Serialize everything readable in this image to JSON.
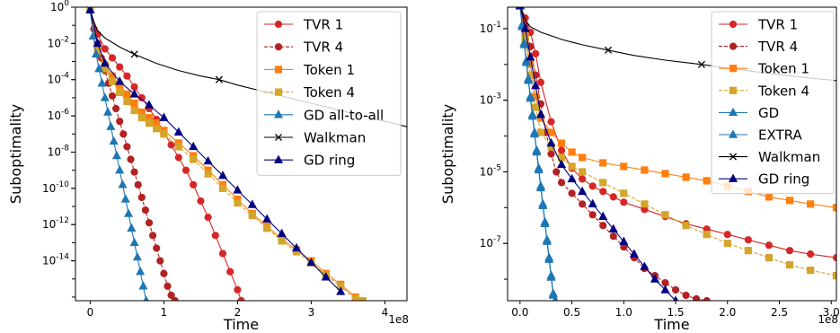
{
  "chart_data": [
    {
      "type": "line",
      "ylabel": "Suboptimality",
      "xlabel": "Time",
      "x_scale_label": "1e8",
      "yscale": "log",
      "xlim": [
        -0.2,
        4.3
      ],
      "ylim_log10": [
        -16.2,
        0
      ],
      "xticks": [
        0,
        1,
        2,
        3,
        4
      ],
      "xtick_labels": [
        "0",
        "1",
        "2",
        "3",
        "4"
      ],
      "yticks_log10": [
        0,
        -2,
        -4,
        -6,
        -8,
        -10,
        -12,
        -14
      ],
      "ytick_labels": [
        {
          "base": "10",
          "exp": "0"
        },
        {
          "base": "10",
          "exp": "-2"
        },
        {
          "base": "10",
          "exp": "-4"
        },
        {
          "base": "10",
          "exp": "-6"
        },
        {
          "base": "10",
          "exp": "-8"
        },
        {
          "base": "10",
          "exp": "-10"
        },
        {
          "base": "10",
          "exp": "-12"
        },
        {
          "base": "10",
          "exp": "-14"
        }
      ],
      "legend_position": "top-right",
      "series": [
        {
          "name": "TVR 1",
          "color": "#d62728",
          "marker": "circle",
          "dash": "solid",
          "x": [
            0.0,
            0.1,
            0.2,
            0.3,
            0.4,
            0.5,
            0.6,
            0.7,
            0.8,
            0.9,
            1.0,
            1.1,
            1.2,
            1.3,
            1.4,
            1.5,
            1.6,
            1.7,
            1.8,
            1.9,
            2.0,
            2.05
          ],
          "y_log10": [
            -0.15,
            -1.5,
            -2.3,
            -2.8,
            -3.3,
            -3.8,
            -4.4,
            -5.0,
            -5.6,
            -6.2,
            -6.9,
            -7.6,
            -8.3,
            -9.0,
            -9.8,
            -10.7,
            -11.6,
            -12.6,
            -13.6,
            -14.6,
            -15.6,
            -16.2
          ]
        },
        {
          "name": "TVR 4",
          "color": "#b22222",
          "marker": "circle",
          "dash": "dashed",
          "x": [
            0.0,
            0.05,
            0.1,
            0.15,
            0.2,
            0.25,
            0.3,
            0.35,
            0.4,
            0.45,
            0.5,
            0.55,
            0.6,
            0.65,
            0.7,
            0.75,
            0.8,
            0.85,
            0.9,
            0.95,
            1.0,
            1.05,
            1.1,
            1.15
          ],
          "y_log10": [
            -0.15,
            -1.2,
            -2.0,
            -2.8,
            -3.5,
            -4.2,
            -4.9,
            -5.6,
            -6.3,
            -7.0,
            -7.7,
            -8.4,
            -9.1,
            -9.8,
            -10.5,
            -11.2,
            -11.9,
            -12.6,
            -13.3,
            -14.0,
            -14.7,
            -15.4,
            -15.9,
            -16.2
          ]
        },
        {
          "name": "Token 1",
          "color": "#ff7f0e",
          "marker": "square",
          "dash": "solid",
          "x": [
            0.0,
            0.1,
            0.2,
            0.3,
            0.4,
            0.5,
            0.6,
            0.7,
            0.8,
            0.9,
            1.0,
            1.2,
            1.4,
            1.6,
            1.8,
            2.0,
            2.2,
            2.4,
            2.6,
            2.8,
            3.0,
            3.2,
            3.4,
            3.6
          ],
          "y_log10": [
            -0.15,
            -2.2,
            -3.2,
            -3.8,
            -4.3,
            -4.8,
            -5.3,
            -5.8,
            -6.1,
            -6.4,
            -6.8,
            -7.5,
            -8.2,
            -9.0,
            -9.8,
            -10.6,
            -11.4,
            -12.1,
            -12.8,
            -13.4,
            -14.0,
            -14.7,
            -15.3,
            -16.0
          ]
        },
        {
          "name": "Token 4",
          "color": "#d4a52a",
          "marker": "square",
          "dash": "dashed",
          "x": [
            0.0,
            0.1,
            0.2,
            0.3,
            0.4,
            0.5,
            0.6,
            0.7,
            0.8,
            0.9,
            1.0,
            1.2,
            1.4,
            1.6,
            1.8,
            2.0,
            2.2,
            2.4,
            2.6,
            2.8,
            3.0,
            3.2,
            3.4,
            3.6,
            3.7
          ],
          "y_log10": [
            -0.15,
            -2.4,
            -3.4,
            -4.1,
            -4.7,
            -5.2,
            -5.7,
            -6.1,
            -6.4,
            -6.7,
            -7.0,
            -7.7,
            -8.4,
            -9.2,
            -10.0,
            -10.8,
            -11.5,
            -12.2,
            -12.9,
            -13.5,
            -14.1,
            -14.8,
            -15.4,
            -16.1,
            -16.2
          ]
        },
        {
          "name": "GD all-to-all",
          "color": "#1f77b4",
          "marker": "triangle",
          "dash": "solid",
          "x": [
            0.0,
            0.04,
            0.08,
            0.12,
            0.16,
            0.2,
            0.24,
            0.28,
            0.32,
            0.36,
            0.4,
            0.44,
            0.48,
            0.52,
            0.56,
            0.6,
            0.64,
            0.68,
            0.72,
            0.76
          ],
          "y_log10": [
            -0.15,
            -1.6,
            -2.6,
            -3.4,
            -4.2,
            -5.0,
            -5.8,
            -6.6,
            -7.4,
            -8.2,
            -9.0,
            -9.8,
            -10.6,
            -11.4,
            -12.2,
            -13.0,
            -13.8,
            -14.6,
            -15.4,
            -16.2
          ]
        },
        {
          "name": "Walkman",
          "color": "#000000",
          "marker": "x",
          "dash": "solid",
          "x": [
            0.0,
            0.05,
            0.1,
            0.2,
            0.4,
            0.6,
            0.9,
            1.2,
            1.5,
            1.75,
            2.0,
            2.5,
            3.0,
            3.5,
            4.0,
            4.3
          ],
          "y_log10": [
            -0.15,
            -0.8,
            -1.3,
            -1.7,
            -2.2,
            -2.6,
            -3.1,
            -3.5,
            -3.8,
            -4.0,
            -4.3,
            -4.8,
            -5.3,
            -5.8,
            -6.3,
            -6.6
          ],
          "marker_indices": [
            5,
            9
          ]
        },
        {
          "name": "GD ring",
          "color": "#000080",
          "marker": "triangle",
          "dash": "solid",
          "x": [
            0.0,
            0.1,
            0.2,
            0.4,
            0.6,
            0.8,
            1.0,
            1.2,
            1.4,
            1.6,
            1.8,
            2.0,
            2.2,
            2.4,
            2.6,
            2.8,
            3.0,
            3.2,
            3.4
          ],
          "y_log10": [
            -0.15,
            -2.0,
            -3.1,
            -4.1,
            -4.8,
            -5.4,
            -6.1,
            -6.9,
            -7.7,
            -8.5,
            -9.3,
            -10.1,
            -10.9,
            -11.7,
            -12.5,
            -13.3,
            -14.1,
            -14.9,
            -15.7
          ]
        }
      ]
    },
    {
      "type": "line",
      "ylabel": "Suboptimality",
      "xlabel": "Time",
      "x_scale_label": "1e8",
      "yscale": "log",
      "xlim": [
        -0.12,
        3.05
      ],
      "ylim_log10": [
        -8.6,
        -0.4
      ],
      "xticks": [
        0.0,
        0.5,
        1.0,
        1.5,
        2.0,
        2.5,
        3.0
      ],
      "xtick_labels": [
        "0.0",
        "0.5",
        "1.0",
        "1.5",
        "2.0",
        "2.5",
        "3.0"
      ],
      "yticks_log10": [
        -1,
        -3,
        -5,
        -7
      ],
      "ytick_labels": [
        {
          "base": "10",
          "exp": "-1"
        },
        {
          "base": "10",
          "exp": "-3"
        },
        {
          "base": "10",
          "exp": "-5"
        },
        {
          "base": "10",
          "exp": "-7"
        }
      ],
      "legend_position": "top-right",
      "series": [
        {
          "name": "TVR 1",
          "color": "#d62728",
          "marker": "circle",
          "dash": "solid",
          "x": [
            0.0,
            0.05,
            0.1,
            0.15,
            0.2,
            0.3,
            0.4,
            0.5,
            0.6,
            0.7,
            0.8,
            0.9,
            1.0,
            1.2,
            1.4,
            1.6,
            1.8,
            2.0,
            2.2,
            2.4,
            2.6,
            2.8,
            3.05
          ],
          "y_log10": [
            -0.35,
            -0.7,
            -1.1,
            -1.7,
            -2.5,
            -3.6,
            -4.4,
            -4.9,
            -5.2,
            -5.4,
            -5.55,
            -5.7,
            -5.85,
            -6.05,
            -6.25,
            -6.45,
            -6.6,
            -6.75,
            -6.9,
            -7.05,
            -7.2,
            -7.3,
            -7.4
          ]
        },
        {
          "name": "TVR 4",
          "color": "#b22222",
          "marker": "circle",
          "dash": "dashed",
          "x": [
            0.0,
            0.05,
            0.1,
            0.15,
            0.2,
            0.25,
            0.3,
            0.35,
            0.4,
            0.5,
            0.6,
            0.7,
            0.8,
            0.9,
            1.0,
            1.1,
            1.2,
            1.3,
            1.4,
            1.5,
            1.6,
            1.7,
            1.8
          ],
          "y_log10": [
            -0.35,
            -0.9,
            -1.5,
            -2.3,
            -3.1,
            -3.9,
            -4.5,
            -5.0,
            -5.3,
            -5.6,
            -5.9,
            -6.2,
            -6.5,
            -6.8,
            -7.1,
            -7.4,
            -7.7,
            -7.9,
            -8.1,
            -8.3,
            -8.45,
            -8.55,
            -8.6
          ]
        },
        {
          "name": "Token 1",
          "color": "#ff7f0e",
          "marker": "square",
          "dash": "solid",
          "x": [
            0.0,
            0.05,
            0.1,
            0.15,
            0.2,
            0.3,
            0.4,
            0.5,
            0.6,
            0.8,
            1.0,
            1.2,
            1.4,
            1.6,
            1.8,
            2.0,
            2.2,
            2.4,
            2.6,
            2.8,
            3.05
          ],
          "y_log10": [
            -0.35,
            -1.2,
            -2.0,
            -2.9,
            -3.5,
            -3.9,
            -4.2,
            -4.45,
            -4.6,
            -4.75,
            -4.85,
            -4.95,
            -5.05,
            -5.15,
            -5.25,
            -5.4,
            -5.55,
            -5.7,
            -5.8,
            -5.9,
            -6.0
          ]
        },
        {
          "name": "Token 4",
          "color": "#d4a52a",
          "marker": "square",
          "dash": "dashed",
          "x": [
            0.0,
            0.05,
            0.1,
            0.15,
            0.2,
            0.3,
            0.4,
            0.5,
            0.6,
            0.8,
            1.0,
            1.2,
            1.4,
            1.6,
            1.8,
            2.0,
            2.2,
            2.4,
            2.6,
            2.8,
            3.05
          ],
          "y_log10": [
            -0.35,
            -1.3,
            -2.3,
            -3.2,
            -3.9,
            -4.3,
            -4.6,
            -4.85,
            -5.0,
            -5.3,
            -5.6,
            -5.9,
            -6.2,
            -6.5,
            -6.75,
            -7.0,
            -7.2,
            -7.4,
            -7.6,
            -7.75,
            -7.9
          ]
        },
        {
          "name": "GD",
          "color": "#1f77b4",
          "marker": "triangle",
          "dash": "solid",
          "x": [
            0.0,
            0.02,
            0.04,
            0.06,
            0.08,
            0.1,
            0.12,
            0.14,
            0.16,
            0.18,
            0.2,
            0.22,
            0.24,
            0.26,
            0.28,
            0.3,
            0.32,
            0.34
          ],
          "y_log10": [
            -0.35,
            -0.9,
            -1.4,
            -1.9,
            -2.4,
            -2.9,
            -3.4,
            -3.9,
            -4.4,
            -4.9,
            -5.4,
            -5.9,
            -6.4,
            -6.9,
            -7.4,
            -7.9,
            -8.4,
            -8.6
          ]
        },
        {
          "name": "EXTRA",
          "color": "#1f77b4",
          "marker": "triangle",
          "dash": "solid",
          "x": [
            0.0,
            0.02,
            0.04,
            0.06,
            0.08,
            0.1,
            0.12,
            0.14,
            0.16,
            0.18,
            0.2,
            0.22,
            0.24,
            0.26,
            0.28,
            0.3,
            0.32,
            0.34
          ],
          "y_log10": [
            -0.38,
            -0.95,
            -1.45,
            -1.95,
            -2.45,
            -2.95,
            -3.45,
            -3.95,
            -4.45,
            -4.95,
            -5.45,
            -5.95,
            -6.45,
            -6.95,
            -7.45,
            -7.95,
            -8.45,
            -8.6
          ]
        },
        {
          "name": "Walkman",
          "color": "#000000",
          "marker": "x",
          "dash": "solid",
          "x": [
            0.0,
            0.03,
            0.06,
            0.1,
            0.2,
            0.4,
            0.6,
            0.85,
            1.1,
            1.4,
            1.75,
            2.0,
            2.4,
            2.8,
            3.05
          ],
          "y_log10": [
            -0.35,
            -0.6,
            -0.8,
            -0.95,
            -1.1,
            -1.3,
            -1.45,
            -1.6,
            -1.75,
            -1.88,
            -2.0,
            -2.1,
            -2.25,
            -2.38,
            -2.45
          ],
          "marker_indices": [
            7,
            10
          ]
        },
        {
          "name": "GD ring",
          "color": "#000080",
          "marker": "triangle",
          "dash": "solid",
          "x": [
            0.0,
            0.05,
            0.1,
            0.15,
            0.2,
            0.3,
            0.4,
            0.5,
            0.6,
            0.7,
            0.8,
            0.9,
            1.0,
            1.1,
            1.2,
            1.3,
            1.4,
            1.5
          ],
          "y_log10": [
            -0.35,
            -1.0,
            -1.8,
            -2.6,
            -3.4,
            -4.2,
            -4.8,
            -5.2,
            -5.55,
            -5.9,
            -6.25,
            -6.6,
            -6.95,
            -7.3,
            -7.65,
            -8.0,
            -8.3,
            -8.6
          ]
        }
      ]
    }
  ]
}
